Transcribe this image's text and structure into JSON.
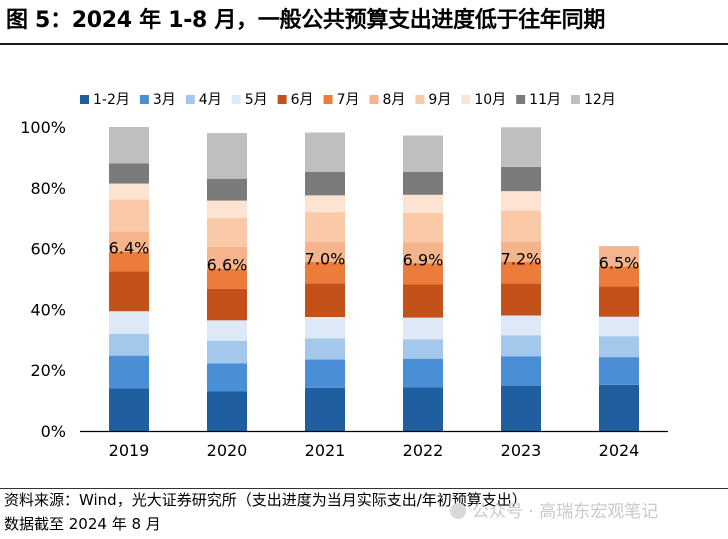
{
  "title": "图 5：2024 年 1-8 月，一般公共预算支出进度低于往年同期",
  "chart_data": {
    "type": "bar",
    "stacked": true,
    "categories": [
      "2019",
      "2020",
      "2021",
      "2022",
      "2023",
      "2024"
    ],
    "ylim": [
      0,
      100
    ],
    "yticks": [
      "0%",
      "20%",
      "40%",
      "60%",
      "80%",
      "100%"
    ],
    "legend_position": "top",
    "series": [
      {
        "name": "1-2月",
        "color": "#1f5fa0",
        "values": [
          14.0,
          13.0,
          14.2,
          14.3,
          14.8,
          15.2
        ]
      },
      {
        "name": "3月",
        "color": "#4a8ed6",
        "values": [
          10.8,
          9.2,
          9.3,
          9.5,
          9.8,
          9.1
        ]
      },
      {
        "name": "4月",
        "color": "#a4c8ec",
        "values": [
          7.2,
          7.5,
          7.0,
          6.4,
          6.9,
          6.9
        ]
      },
      {
        "name": "5月",
        "color": "#dde9f6",
        "values": [
          7.4,
          6.7,
          7.0,
          7.1,
          6.5,
          6.4
        ]
      },
      {
        "name": "6月",
        "color": "#c4511a",
        "values": [
          13.1,
          10.4,
          11.1,
          11.0,
          10.5,
          10.0
        ]
      },
      {
        "name": "7月",
        "color": "#ec7c3c",
        "values": [
          6.4,
          6.6,
          7.0,
          6.9,
          7.2,
          6.5
        ]
      },
      {
        "name": "8月",
        "color": "#f5b58c",
        "values": [
          6.8,
          7.2,
          6.6,
          6.8,
          6.6,
          6.7
        ]
      },
      {
        "name": "9月",
        "color": "#f9c9a8",
        "values": [
          10.5,
          9.5,
          9.8,
          9.8,
          10.2,
          0
        ]
      },
      {
        "name": "10月",
        "color": "#fce3d2",
        "values": [
          5.2,
          5.7,
          5.5,
          5.9,
          6.4,
          0
        ]
      },
      {
        "name": "11月",
        "color": "#7b7b7b",
        "values": [
          6.6,
          7.2,
          7.7,
          7.5,
          8.0,
          0
        ]
      },
      {
        "name": "12月",
        "color": "#bfbfbf",
        "values": [
          12.0,
          15.0,
          13.0,
          12.0,
          13.0,
          0
        ]
      }
    ],
    "annotations": [
      {
        "category": "2019",
        "text": "6.4%"
      },
      {
        "category": "2020",
        "text": "6.6%"
      },
      {
        "category": "2021",
        "text": "7.0%"
      },
      {
        "category": "2022",
        "text": "6.9%"
      },
      {
        "category": "2023",
        "text": "7.2%"
      },
      {
        "category": "2024",
        "text": "6.5%"
      }
    ],
    "annotation_series": "7月"
  },
  "source": "资料来源：Wind，光大证券研究所（支出进度为当月实际支出/年初预算支出）",
  "note": "数据截至 2024 年 8 月",
  "watermark": "公众号 · 高瑞东宏观笔记"
}
